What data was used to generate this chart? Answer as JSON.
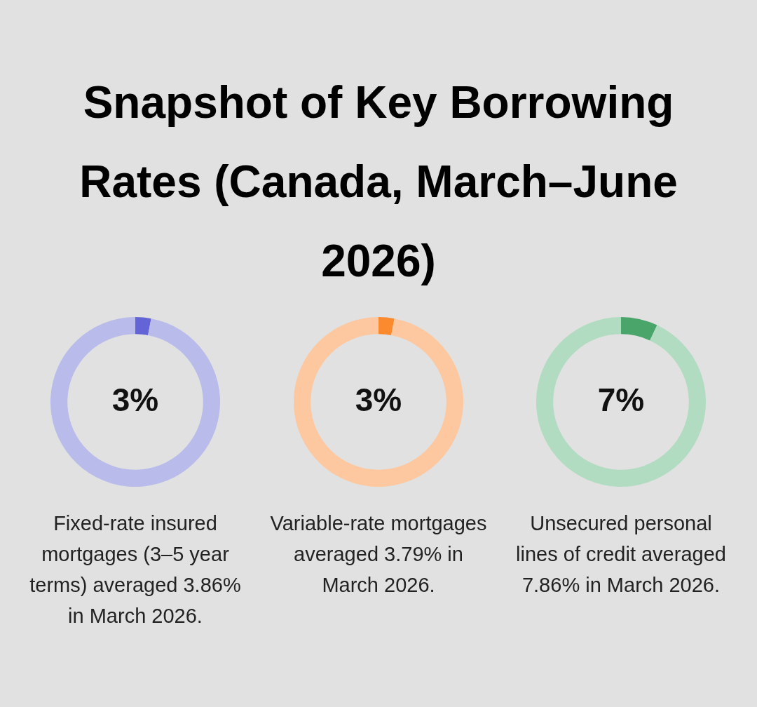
{
  "chart_data": [
    {
      "type": "donut",
      "title": "Snapshot of Key Borrowing Rates (Canada, March–June 2026)",
      "categories": [
        null,
        null
      ],
      "values": [
        3,
        97
      ],
      "colors": [
        "#6365d6",
        "#b9bbea"
      ],
      "value_labels": [
        "3%",
        null
      ],
      "annotations": [
        "Fixed-rate insured mortgages (3–5 year terms) averaged 3.86% in March 2026."
      ]
    },
    {
      "type": "donut",
      "categories": [
        null,
        null
      ],
      "values": [
        3,
        97
      ],
      "colors": [
        "#fb8a2e",
        "#fdc8a0"
      ],
      "value_labels": [
        "3%",
        null
      ],
      "annotations": [
        "Variable-rate mortgages averaged 3.79% in March 2026."
      ]
    },
    {
      "type": "donut",
      "categories": [
        null,
        null
      ],
      "values": [
        7,
        93
      ],
      "colors": [
        "#4aa56a",
        "#b1dcc1"
      ],
      "value_labels": [
        "7%",
        null
      ],
      "annotations": [
        "Unsecured personal lines of credit averaged 7.86% in March 2026."
      ]
    }
  ]
}
